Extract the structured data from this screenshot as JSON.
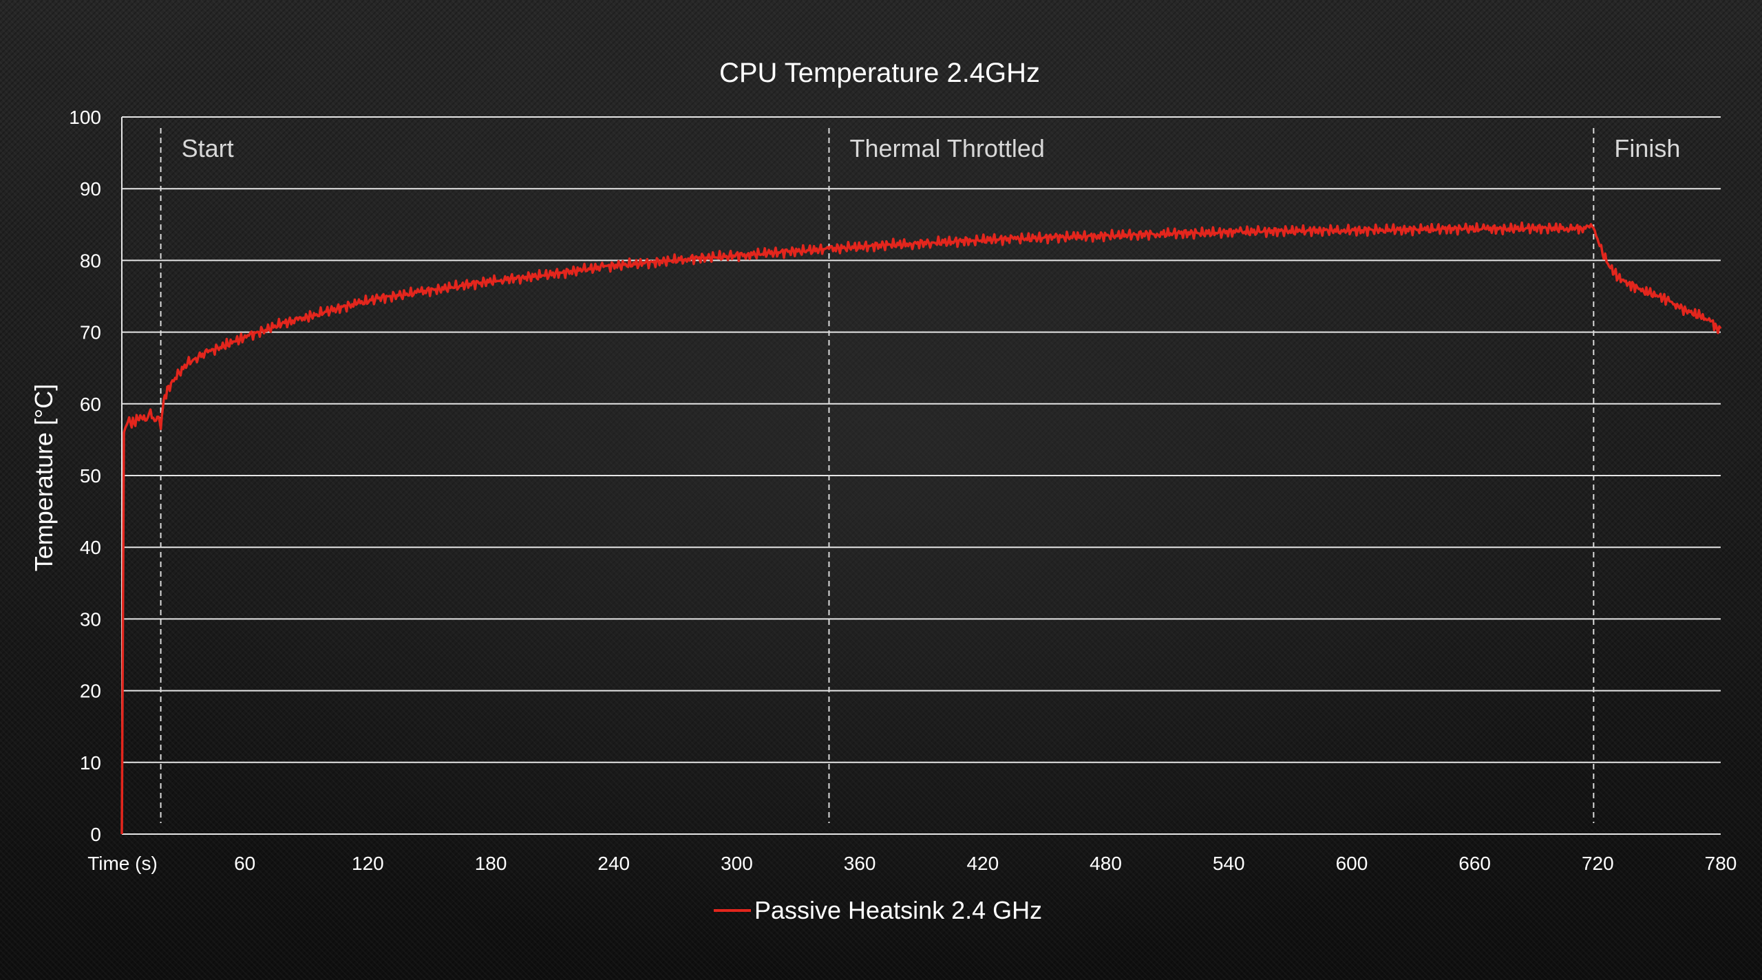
{
  "chart_data": {
    "type": "line",
    "title": "CPU Temperature 2.4GHz",
    "xlabel": "Time (s)",
    "ylabel": "Temperature [°C]",
    "xlim": [
      0,
      780
    ],
    "ylim": [
      0,
      100
    ],
    "x_ticks": [
      60,
      120,
      180,
      240,
      300,
      360,
      420,
      480,
      540,
      600,
      660,
      720,
      780
    ],
    "y_ticks": [
      0,
      10,
      20,
      30,
      40,
      50,
      60,
      70,
      80,
      90,
      100
    ],
    "grid": "horizontal",
    "legend_position": "bottom-center",
    "annotations": [
      {
        "label": "Start",
        "x": 19
      },
      {
        "label": "Thermal Throttled",
        "x": 345
      },
      {
        "label": "Finish",
        "x": 718
      }
    ],
    "series": [
      {
        "name": "Passive Heatsink 2.4 GHz",
        "color": "#e3261d",
        "points": [
          [
            0,
            0
          ],
          [
            1,
            56
          ],
          [
            3,
            57.5
          ],
          [
            6,
            57.3
          ],
          [
            9,
            58.4
          ],
          [
            12,
            57.7
          ],
          [
            14,
            59.2
          ],
          [
            16,
            57.6
          ],
          [
            18,
            58.2
          ],
          [
            19,
            56.5
          ],
          [
            20,
            59.5
          ],
          [
            21,
            61.2
          ],
          [
            24,
            62.9
          ],
          [
            28,
            64.3
          ],
          [
            32,
            65.6
          ],
          [
            36,
            66.4
          ],
          [
            42,
            67.2
          ],
          [
            48,
            67.9
          ],
          [
            55,
            68.7
          ],
          [
            62,
            69.5
          ],
          [
            70,
            70.3
          ],
          [
            78,
            71.2
          ],
          [
            86,
            71.7
          ],
          [
            95,
            72.5
          ],
          [
            105,
            73.3
          ],
          [
            115,
            74.0
          ],
          [
            125,
            74.7
          ],
          [
            135,
            75.1
          ],
          [
            145,
            75.6
          ],
          [
            155,
            76.0
          ],
          [
            165,
            76.5
          ],
          [
            175,
            76.9
          ],
          [
            185,
            77.3
          ],
          [
            195,
            77.6
          ],
          [
            205,
            77.9
          ],
          [
            215,
            78.3
          ],
          [
            225,
            78.7
          ],
          [
            235,
            79.1
          ],
          [
            245,
            79.4
          ],
          [
            255,
            79.6
          ],
          [
            265,
            79.9
          ],
          [
            275,
            80.2
          ],
          [
            285,
            80.4
          ],
          [
            295,
            80.6
          ],
          [
            305,
            80.8
          ],
          [
            315,
            81.0
          ],
          [
            325,
            81.2
          ],
          [
            335,
            81.4
          ],
          [
            345,
            81.6
          ],
          [
            355,
            81.8
          ],
          [
            365,
            82.0
          ],
          [
            375,
            82.2
          ],
          [
            385,
            82.3
          ],
          [
            395,
            82.5
          ],
          [
            405,
            82.6
          ],
          [
            415,
            82.8
          ],
          [
            425,
            82.9
          ],
          [
            435,
            83.0
          ],
          [
            445,
            83.1
          ],
          [
            455,
            83.2
          ],
          [
            465,
            83.3
          ],
          [
            475,
            83.4
          ],
          [
            485,
            83.5
          ],
          [
            495,
            83.6
          ],
          [
            505,
            83.7
          ],
          [
            515,
            83.8
          ],
          [
            525,
            83.8
          ],
          [
            535,
            83.9
          ],
          [
            545,
            84.0
          ],
          [
            555,
            84.0
          ],
          [
            565,
            84.1
          ],
          [
            575,
            84.1
          ],
          [
            585,
            84.2
          ],
          [
            595,
            84.2
          ],
          [
            605,
            84.2
          ],
          [
            615,
            84.3
          ],
          [
            625,
            84.3
          ],
          [
            635,
            84.3
          ],
          [
            645,
            84.4
          ],
          [
            655,
            84.4
          ],
          [
            665,
            84.4
          ],
          [
            675,
            84.4
          ],
          [
            685,
            84.5
          ],
          [
            695,
            84.5
          ],
          [
            705,
            84.5
          ],
          [
            712,
            84.5
          ],
          [
            716,
            84.6
          ],
          [
            718,
            84.5
          ],
          [
            721,
            82.0
          ],
          [
            725,
            79.5
          ],
          [
            730,
            77.6
          ],
          [
            735,
            76.8
          ],
          [
            740,
            76.0
          ],
          [
            745,
            75.4
          ],
          [
            750,
            75.0
          ],
          [
            755,
            74.3
          ],
          [
            760,
            73.3
          ],
          [
            765,
            72.8
          ],
          [
            770,
            72.2
          ],
          [
            775,
            71.5
          ],
          [
            778,
            70.7
          ],
          [
            780,
            70.5
          ]
        ]
      }
    ]
  }
}
